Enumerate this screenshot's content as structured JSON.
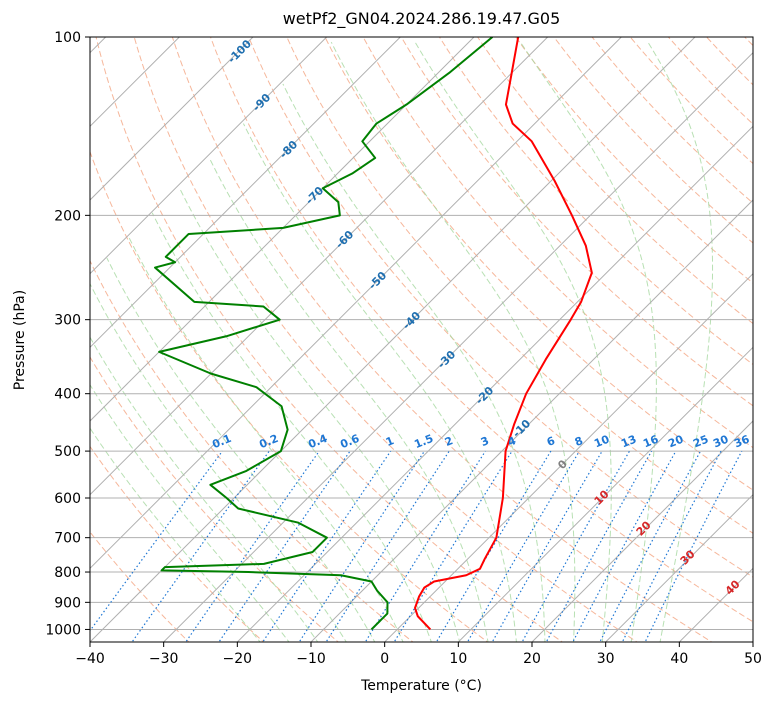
{
  "chart_data": {
    "type": "skew-t log-p",
    "title": "wetPf2_GN04.2024.286.19.47.G05",
    "xlabel": "Temperature (°C)",
    "ylabel": "Pressure (hPa)",
    "xlim": [
      -40,
      50
    ],
    "ylim": [
      1050,
      100
    ],
    "x_ticks": [
      -40,
      -30,
      -20,
      -10,
      0,
      10,
      20,
      30,
      40,
      50
    ],
    "y_ticks": [
      1000,
      900,
      800,
      700,
      600,
      500,
      400,
      300,
      200,
      100
    ],
    "grid": true,
    "colors": {
      "temperature": "#ff0000",
      "dewpoint": "#008000",
      "isotherm": "#b0b0b0",
      "dry_adiabat": "#f4a582",
      "moist_adiabat": "#a6d8a0",
      "mixing_ratio": "#1f77d4",
      "isotherm_label": "#1f6fb0",
      "dry_adiabat_label": "#d62728",
      "zero_label": "#808080"
    },
    "series": [
      {
        "name": "Temperature",
        "points": [
          {
            "p": 1000,
            "t": 4.5
          },
          {
            "p": 950,
            "t": 1.0
          },
          {
            "p": 920,
            "t": -0.5
          },
          {
            "p": 880,
            "t": -1.5
          },
          {
            "p": 850,
            "t": -2.0
          },
          {
            "p": 830,
            "t": -1.5
          },
          {
            "p": 810,
            "t": 2.0
          },
          {
            "p": 790,
            "t": 3.0
          },
          {
            "p": 760,
            "t": 2.3
          },
          {
            "p": 700,
            "t": 1.0
          },
          {
            "p": 600,
            "t": -3.5
          },
          {
            "p": 500,
            "t": -9.5
          },
          {
            "p": 450,
            "t": -12.0
          },
          {
            "p": 400,
            "t": -14.5
          },
          {
            "p": 350,
            "t": -16.5
          },
          {
            "p": 300,
            "t": -18.5
          },
          {
            "p": 280,
            "t": -19.5
          },
          {
            "p": 250,
            "t": -22.0
          },
          {
            "p": 225,
            "t": -26.5
          },
          {
            "p": 200,
            "t": -32.5
          },
          {
            "p": 175,
            "t": -39.5
          },
          {
            "p": 150,
            "t": -48.0
          },
          {
            "p": 140,
            "t": -53.0
          },
          {
            "p": 130,
            "t": -56.5
          },
          {
            "p": 115,
            "t": -60.0
          },
          {
            "p": 100,
            "t": -64.0
          }
        ]
      },
      {
        "name": "Dewpoint",
        "points": [
          {
            "p": 1000,
            "t": -3.5
          },
          {
            "p": 970,
            "t": -3.5
          },
          {
            "p": 940,
            "t": -3.5
          },
          {
            "p": 900,
            "t": -5.0
          },
          {
            "p": 860,
            "t": -8.0
          },
          {
            "p": 830,
            "t": -10.0
          },
          {
            "p": 810,
            "t": -15.0
          },
          {
            "p": 800,
            "t": -28.0
          },
          {
            "p": 795,
            "t": -40.0
          },
          {
            "p": 785,
            "t": -40.0
          },
          {
            "p": 775,
            "t": -27.0
          },
          {
            "p": 740,
            "t": -22.0
          },
          {
            "p": 700,
            "t": -22.0
          },
          {
            "p": 660,
            "t": -28.0
          },
          {
            "p": 625,
            "t": -38.0
          },
          {
            "p": 600,
            "t": -41.0
          },
          {
            "p": 570,
            "t": -45.0
          },
          {
            "p": 540,
            "t": -42.0
          },
          {
            "p": 500,
            "t": -40.0
          },
          {
            "p": 460,
            "t": -42.0
          },
          {
            "p": 420,
            "t": -46.0
          },
          {
            "p": 390,
            "t": -52.0
          },
          {
            "p": 370,
            "t": -60.0
          },
          {
            "p": 340,
            "t": -70.0
          },
          {
            "p": 320,
            "t": -63.0
          },
          {
            "p": 300,
            "t": -58.0
          },
          {
            "p": 285,
            "t": -62.0
          },
          {
            "p": 280,
            "t": -72.0
          },
          {
            "p": 245,
            "t": -82.0
          },
          {
            "p": 240,
            "t": -80.0
          },
          {
            "p": 235,
            "t": -82.0
          },
          {
            "p": 215,
            "t": -82.0
          },
          {
            "p": 210,
            "t": -70.0
          },
          {
            "p": 200,
            "t": -64.0
          },
          {
            "p": 190,
            "t": -66.0
          },
          {
            "p": 180,
            "t": -70.0
          },
          {
            "p": 170,
            "t": -68.0
          },
          {
            "p": 160,
            "t": -67.0
          },
          {
            "p": 150,
            "t": -71.0
          },
          {
            "p": 140,
            "t": -71.5
          },
          {
            "p": 130,
            "t": -70.0
          },
          {
            "p": 115,
            "t": -68.5
          },
          {
            "p": 100,
            "t": -67.5
          }
        ]
      }
    ],
    "isotherm_labels": [
      -100,
      -90,
      -80,
      -70,
      -60,
      -50,
      -40,
      -30,
      -20,
      -10,
      0
    ],
    "dry_adiabat_labels": [
      0,
      10,
      20,
      30,
      40
    ],
    "mixing_ratio_labels": [
      "0.1",
      "0.2",
      "0.4",
      "0.6",
      "1",
      "1.5",
      "2",
      "3",
      "4",
      "6",
      "8",
      "10",
      "13",
      "16",
      "20",
      "25",
      "30",
      "36"
    ]
  }
}
